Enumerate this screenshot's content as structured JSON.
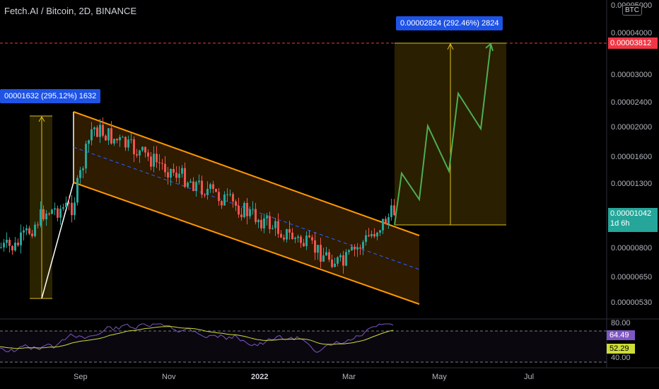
{
  "chart": {
    "title": "Fetch.AI / Bitcoin, 2D, BINANCE",
    "currency": "BTC",
    "price_levels": [
      "0.00005000",
      "0.00004000",
      "0.00003000",
      "0.00002400",
      "0.00002000",
      "0.00001600",
      "0.00001300",
      "0.00000800",
      "0.00000650",
      "0.00000530"
    ],
    "target_price": "0.00003812",
    "current_price": "0.00001042",
    "countdown": "1d 6h",
    "time_labels": [
      "Sep",
      "Nov",
      "2022",
      "Mar",
      "May",
      "Jul"
    ],
    "measure_left": "00001632 (295.12%) 1632",
    "measure_right": "0.00002824 (292.46%) 2824"
  },
  "rsi": {
    "levels": [
      "80.00",
      "40.00"
    ],
    "value": "64.49",
    "ma_value": "52.29"
  },
  "colors": {
    "up": "#26a69a",
    "down": "#ef5350",
    "channel": "#ff9800",
    "projection": "#4caf50",
    "measure": "#1e53e5",
    "target": "#f23645",
    "rsi_line": "#7e57c2",
    "rsi_ma": "#cddc39"
  }
}
